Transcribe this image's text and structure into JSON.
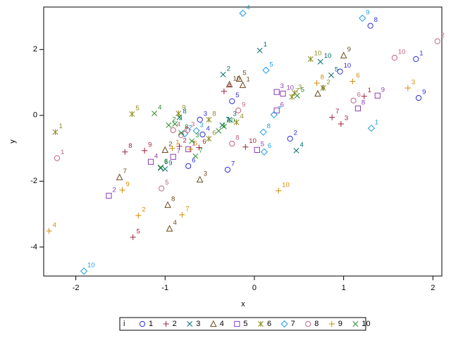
{
  "chart_data": {
    "type": "scatter",
    "x_label": "x",
    "y_label": "y",
    "legend_title": "i",
    "xlim": [
      -2.36,
      2.1
    ],
    "ylim": [
      -4.88,
      3.29
    ],
    "xticks": [
      -2,
      -1,
      0,
      1,
      2
    ],
    "yticks": [
      -4,
      -2,
      0,
      2
    ],
    "series": [
      {
        "name": "1",
        "color": "#2b2bd6",
        "marker": "circle",
        "point_labels": [
          1,
          2,
          3,
          4,
          5,
          6,
          7,
          8,
          9,
          10
        ],
        "x": [
          1.81,
          0.4,
          -0.61,
          -0.58,
          -0.25,
          -0.74,
          -0.3,
          1.3,
          1.84,
          0.96
        ],
        "values": [
          1.71,
          -0.71,
          -0.13,
          -0.58,
          0.43,
          -1.54,
          -1.65,
          2.72,
          0.53,
          1.33
        ]
      },
      {
        "name": "2",
        "color": "#a0203c",
        "marker": "plus",
        "point_labels": [
          1,
          2,
          3,
          4,
          5,
          6,
          7,
          8,
          9,
          10
        ],
        "x": [
          1.23,
          -0.84,
          0.97,
          -0.34,
          -1.36,
          -0.62,
          0.87,
          -1.45,
          -1.23,
          -0.1
        ],
        "values": [
          0.58,
          -0.94,
          -0.26,
          0.73,
          -3.7,
          -0.98,
          -0.06,
          -1.11,
          -1.07,
          -0.96
        ]
      },
      {
        "name": "3",
        "color": "#006b6b",
        "marker": "x",
        "point_labels": [
          1,
          2,
          3,
          4,
          5,
          6,
          7,
          8,
          9,
          10
        ],
        "x": [
          0.06,
          -0.35,
          -0.28,
          0.47,
          0.86,
          -1.05,
          -0.36,
          -0.84,
          -1.0,
          0.74
        ],
        "values": [
          1.97,
          1.24,
          -0.13,
          -1.07,
          1.22,
          -1.6,
          -0.3,
          -0.06,
          -1.63,
          1.63
        ]
      },
      {
        "name": "4",
        "color": "#6b4a1f",
        "marker": "triangle",
        "point_labels": [
          1,
          2,
          3,
          4,
          5,
          6,
          7,
          8,
          9,
          10
        ],
        "x": [
          -0.13,
          -1.0,
          -0.61,
          -0.95,
          -0.17,
          0.71,
          -1.51,
          -0.97,
          1.0,
          -0.28
        ],
        "values": [
          0.92,
          -1.05,
          -1.95,
          -3.44,
          1.11,
          0.66,
          -1.88,
          -2.72,
          1.82,
          0.94
        ]
      },
      {
        "name": "5",
        "color": "#8c3cb4",
        "marker": "square",
        "point_labels": [
          1,
          2,
          3,
          4,
          5,
          6,
          7,
          8,
          9,
          10
        ],
        "x": [
          -0.74,
          -1.63,
          0.25,
          -1.16,
          0.03,
          0.25,
          -0.91,
          1.16,
          1.38,
          0.32
        ],
        "values": [
          -1.03,
          -2.44,
          0.71,
          -1.41,
          -1.05,
          0.15,
          -1.26,
          0.21,
          0.6,
          0.66
        ]
      },
      {
        "name": "6",
        "color": "#8a8a1e",
        "marker": "asterisk",
        "point_labels": [
          1,
          2,
          3,
          4,
          5,
          6,
          7,
          8,
          9,
          10
        ],
        "x": [
          -2.23,
          0.77,
          0.45,
          -0.2,
          -1.37,
          -0.51,
          0.42,
          -0.51,
          -0.85,
          0.63
        ],
        "values": [
          -0.51,
          0.83,
          0.68,
          -0.21,
          0.04,
          -0.71,
          0.56,
          -0.13,
          0.06,
          1.71
        ]
      },
      {
        "name": "7",
        "color": "#1e9be6",
        "marker": "diamond",
        "point_labels": [
          1,
          2,
          3,
          4,
          5,
          6,
          7,
          8,
          9,
          10
        ],
        "x": [
          1.31,
          -0.78,
          -0.65,
          -0.13,
          0.13,
          0.11,
          0.22,
          0.1,
          1.21,
          -1.91
        ],
        "values": [
          -0.39,
          -0.56,
          -0.47,
          3.1,
          1.37,
          -1.11,
          0.02,
          -0.51,
          2.95,
          -4.73
        ]
      },
      {
        "name": "8",
        "color": "#c0607a",
        "marker": "circle",
        "point_labels": [
          1,
          2,
          3,
          4,
          5,
          6,
          7,
          8,
          9,
          10
        ],
        "x": [
          -2.21,
          2.05,
          -0.75,
          -0.91,
          -1.04,
          1.11,
          -0.82,
          -0.25,
          -0.18,
          1.57
        ],
        "values": [
          -1.3,
          2.25,
          -0.45,
          -0.45,
          -2.22,
          0.45,
          -0.6,
          -0.86,
          0.15,
          1.75
        ]
      },
      {
        "name": "9",
        "color": "#d48b00",
        "marker": "plus",
        "point_labels": [
          1,
          2,
          3,
          4,
          5,
          6,
          7,
          8,
          9,
          10
        ],
        "x": [
          -0.92,
          -1.3,
          1.72,
          -2.3,
          -0.72,
          1.1,
          -0.81,
          0.7,
          -1.48,
          0.27
        ],
        "values": [
          -1.0,
          -3.04,
          0.83,
          -3.51,
          -1.03,
          1.03,
          -3.02,
          0.98,
          -2.27,
          -2.29
        ]
      },
      {
        "name": "10",
        "color": "#2a8c2a",
        "marker": "x",
        "point_labels": [
          1,
          2,
          3,
          4,
          5,
          6,
          7,
          8,
          9,
          10
        ],
        "x": [
          -0.4,
          -0.96,
          -0.7,
          -1.12,
          0.48,
          -1.05,
          -0.66,
          -0.82,
          -0.89,
          -0.34
        ],
        "values": [
          -0.47,
          -0.3,
          -0.78,
          0.06,
          0.6,
          -1.58,
          -1.24,
          -0.53,
          -0.26,
          -0.34
        ]
      }
    ]
  }
}
